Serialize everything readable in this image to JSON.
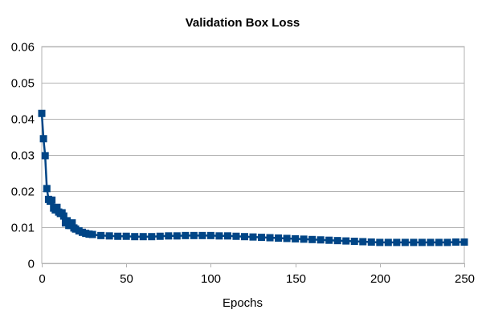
{
  "chart_data": {
    "type": "line",
    "title": "Validation Box Loss",
    "xlabel": "Epochs",
    "ylabel": "",
    "xlim": [
      0,
      250
    ],
    "ylim": [
      0,
      0.06
    ],
    "xticks": [
      0,
      50,
      100,
      150,
      200,
      250
    ],
    "yticks": [
      0,
      0.01,
      0.02,
      0.03,
      0.04,
      0.05,
      0.06
    ],
    "ytick_labels": [
      "0",
      "0.01",
      "0.02",
      "0.03",
      "0.04",
      "0.05",
      "0.06"
    ],
    "grid": true,
    "legend": "none",
    "marker": "square",
    "color": "#004586",
    "series": [
      {
        "x": [
          0,
          1,
          2,
          3,
          4,
          5,
          6,
          7,
          8,
          9,
          10,
          11,
          12,
          13,
          14,
          15,
          16,
          17,
          18,
          19,
          20,
          22,
          24,
          26,
          28,
          30,
          35,
          40,
          45,
          50,
          55,
          60,
          65,
          70,
          75,
          80,
          85,
          90,
          95,
          100,
          105,
          110,
          115,
          120,
          125,
          130,
          135,
          140,
          145,
          150,
          155,
          160,
          165,
          170,
          175,
          180,
          185,
          190,
          195,
          200,
          205,
          210,
          215,
          220,
          225,
          230,
          235,
          240,
          245,
          250
        ],
        "y": [
          0.0415,
          0.0345,
          0.0298,
          0.0207,
          0.0177,
          0.0172,
          0.0175,
          0.0153,
          0.0148,
          0.0155,
          0.0142,
          0.0138,
          0.014,
          0.0131,
          0.0112,
          0.0118,
          0.0105,
          0.0105,
          0.0112,
          0.0098,
          0.0095,
          0.009,
          0.0086,
          0.0083,
          0.0081,
          0.008,
          0.0077,
          0.0076,
          0.0075,
          0.0075,
          0.0074,
          0.0074,
          0.0074,
          0.0075,
          0.0076,
          0.0076,
          0.0077,
          0.0077,
          0.0077,
          0.0077,
          0.0076,
          0.0076,
          0.0075,
          0.0074,
          0.0073,
          0.0072,
          0.0071,
          0.007,
          0.0069,
          0.0068,
          0.0067,
          0.0066,
          0.0065,
          0.0064,
          0.0063,
          0.0062,
          0.0061,
          0.006,
          0.0059,
          0.0058,
          0.0058,
          0.0058,
          0.0058,
          0.0058,
          0.0058,
          0.0058,
          0.0058,
          0.0058,
          0.0059,
          0.0059
        ]
      }
    ]
  }
}
